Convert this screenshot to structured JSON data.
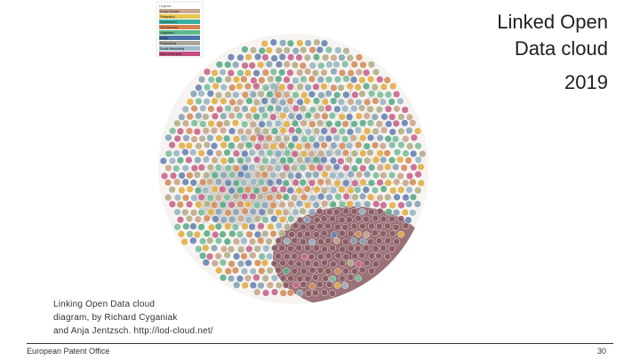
{
  "slide": {
    "title_lines": [
      "Linked Open",
      "Data cloud"
    ],
    "year": "2019",
    "caption_lines": [
      "Linking Open Data cloud",
      "diagram, by Richard Cyganiak",
      "and Anja Jentzsch. http://lod-cloud.net/"
    ],
    "footer": "European Patent Office",
    "page_number": "30"
  },
  "diagram": {
    "legend_title": "Legend",
    "legend": [
      {
        "label": "Cross Domain",
        "color": "#c8a98f"
      },
      {
        "label": "Geography",
        "color": "#e8c54f"
      },
      {
        "label": "Government",
        "color": "#3ab0a0"
      },
      {
        "label": "Life Sciences",
        "color": "#d9824d"
      },
      {
        "label": "Linguistics",
        "color": "#5fb98a"
      },
      {
        "label": "Media",
        "color": "#4a73a8"
      },
      {
        "label": "Publications",
        "color": "#a9a79a"
      },
      {
        "label": "Social Networking",
        "color": "#9bbbc8"
      },
      {
        "label": "User Generated",
        "color": "#c44d7f"
      }
    ],
    "palette": [
      "#e3b04b",
      "#5fae8a",
      "#c9a98e",
      "#9cb8c4",
      "#c86a8e",
      "#8aa6b8",
      "#b5b08d",
      "#6c86b4",
      "#d49161",
      "#7fbfa0"
    ],
    "cluster_color": "#8a5a62"
  }
}
